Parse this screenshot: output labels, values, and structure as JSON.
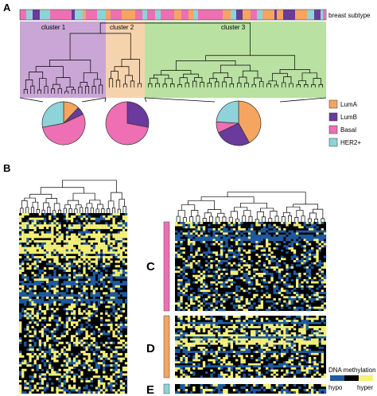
{
  "panels": {
    "a": "A",
    "b": "B"
  },
  "subtype_bar_label": "breast subtype",
  "clusters": [
    {
      "label": "cluster 1",
      "color": "#caa6d6",
      "pie": {
        "LumA": 0.12,
        "LumB": 0.06,
        "Basal": 0.54,
        "HER2+": 0.28
      }
    },
    {
      "label": "cluster 2",
      "color": "#f5d3ad",
      "pie": {
        "LumA": 0.0,
        "LumB": 0.28,
        "Basal": 0.72,
        "HER2+": 0.0
      }
    },
    {
      "label": "cluster 3",
      "color": "#b9e1a2",
      "pie": {
        "LumA": 0.42,
        "LumB": 0.26,
        "Basal": 0.08,
        "HER2+": 0.24
      }
    }
  ],
  "subtypes": [
    {
      "name": "LumA",
      "color": "#f5a55f"
    },
    {
      "name": "LumB",
      "color": "#6a3a9c"
    },
    {
      "name": "Basal",
      "color": "#ee6fb3"
    },
    {
      "name": "HER2+",
      "color": "#8ed3d9"
    }
  ],
  "row_groups": [
    {
      "label": "C",
      "color": "#ee6fb3"
    },
    {
      "label": "D",
      "color": "#f5a55f"
    },
    {
      "label": "E",
      "color": "#8ed3d9"
    }
  ],
  "heatmap_legend": {
    "title": "DNA methylation",
    "low_label": "hypo",
    "high_label": "hyper",
    "colors": [
      "#1f5aa0",
      "#000000",
      "#f4f07a"
    ]
  }
}
